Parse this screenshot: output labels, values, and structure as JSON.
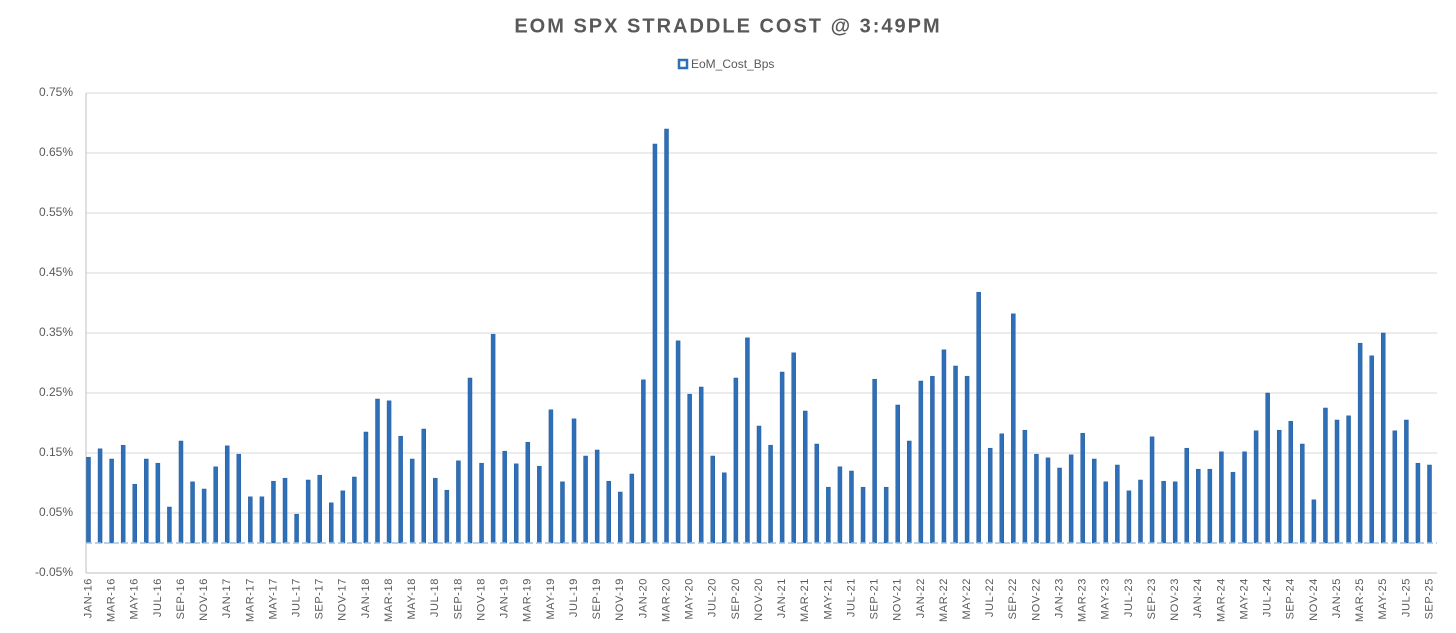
{
  "chart_data": {
    "type": "bar",
    "title": "EOM SPX STRADDLE COST @ 3:49PM",
    "categories": [
      "JAN-16",
      null,
      "MAR-16",
      null,
      "MAY-16",
      null,
      "JUL-16",
      null,
      "SEP-16",
      null,
      "NOV-16",
      null,
      "JAN-17",
      null,
      "MAR-17",
      null,
      "MAY-17",
      null,
      "JUL-17",
      null,
      "SEP-17",
      null,
      "NOV-17",
      null,
      "JAN-18",
      null,
      "MAR-18",
      null,
      "MAY-18",
      null,
      "JUL-18",
      null,
      "SEP-18",
      null,
      "NOV-18",
      null,
      "JAN-19",
      null,
      "MAR-19",
      null,
      "MAY-19",
      null,
      "JUL-19",
      null,
      "SEP-19",
      null,
      "NOV-19",
      null,
      "JAN-20",
      null,
      "MAR-20",
      null,
      "MAY-20",
      null,
      "JUL-20",
      null,
      "SEP-20",
      null,
      "NOV-20",
      null,
      "JAN-21",
      null,
      "MAR-21",
      null,
      "MAY-21",
      null,
      "JUL-21",
      null,
      "SEP-21",
      null,
      "NOV-21",
      null,
      "JAN-22",
      null,
      "MAR-22",
      null,
      "MAY-22",
      null,
      "JUL-22",
      null,
      "SEP-22",
      null,
      "NOV-22",
      null,
      "JAN-23",
      null,
      "MAR-23",
      null,
      "MAY-23",
      null,
      "JUL-23",
      null,
      "SEP-23",
      null,
      "NOV-23",
      null,
      "JAN-24",
      null,
      "MAR-24",
      null,
      "MAY-24",
      null,
      "JUL-24",
      null,
      "SEP-24",
      null,
      "NOV-24",
      null,
      "JAN-25",
      null,
      "MAR-25",
      null,
      "MAY-25",
      null,
      "JUL-25",
      null,
      "SEP-25"
    ],
    "series": [
      {
        "name": "EoM_Cost_Bps",
        "color": "#2e6fb7",
        "values": [
          0.143,
          0.157,
          0.14,
          0.163,
          0.098,
          0.14,
          0.133,
          0.06,
          0.17,
          0.102,
          0.09,
          0.127,
          0.162,
          0.148,
          0.077,
          0.077,
          0.103,
          0.108,
          0.048,
          0.105,
          0.113,
          0.067,
          0.087,
          0.11,
          0.185,
          0.24,
          0.237,
          0.178,
          0.14,
          0.19,
          0.108,
          0.088,
          0.137,
          0.275,
          0.133,
          0.348,
          0.153,
          0.132,
          0.168,
          0.128,
          0.222,
          0.102,
          0.207,
          0.145,
          0.155,
          0.103,
          0.085,
          0.115,
          0.272,
          0.665,
          0.69,
          0.337,
          0.248,
          0.26,
          0.145,
          0.117,
          0.275,
          0.342,
          0.195,
          0.163,
          0.285,
          0.317,
          0.22,
          0.165,
          0.093,
          0.127,
          0.12,
          0.093,
          0.273,
          0.093,
          0.23,
          0.17,
          0.27,
          0.278,
          0.322,
          0.295,
          0.278,
          0.418,
          0.158,
          0.182,
          0.382,
          0.188,
          0.148,
          0.142,
          0.125,
          0.147,
          0.183,
          0.14,
          0.102,
          0.13,
          0.087,
          0.105,
          0.177,
          0.103,
          0.102,
          0.158,
          0.123,
          0.123,
          0.152,
          0.118,
          0.152,
          0.187,
          0.25,
          0.188,
          0.203,
          0.165,
          0.072,
          0.225,
          0.205,
          0.212,
          0.333,
          0.312,
          0.35,
          0.187,
          0.205,
          0.133,
          0.13
        ]
      }
    ],
    "ylim": [
      -0.05,
      0.75
    ],
    "yticks": [
      {
        "value": -0.05,
        "label": "-0.05%"
      },
      {
        "value": 0.05,
        "label": "0.05%"
      },
      {
        "value": 0.15,
        "label": "0.15%"
      },
      {
        "value": 0.25,
        "label": "0.25%"
      },
      {
        "value": 0.35,
        "label": "0.35%"
      },
      {
        "value": 0.45,
        "label": "0.45%"
      },
      {
        "value": 0.55,
        "label": "0.55%"
      },
      {
        "value": 0.65,
        "label": "0.65%"
      },
      {
        "value": 0.75,
        "label": "0.75%"
      }
    ],
    "grid": true,
    "legend": "top"
  }
}
